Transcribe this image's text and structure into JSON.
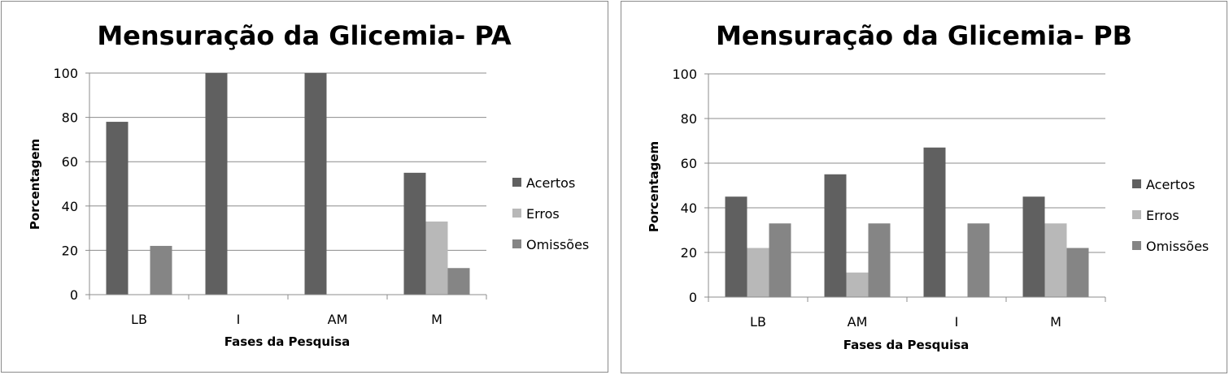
{
  "chart_data": [
    {
      "type": "bar",
      "title": "Mensuração da Glicemia- PA",
      "xlabel": "Fases da Pesquisa",
      "ylabel": "Porcentagem",
      "ylim": [
        0,
        100
      ],
      "yticks": [
        "0",
        "20",
        "40",
        "60",
        "80",
        "100"
      ],
      "categories": [
        "LB",
        "I",
        "AM",
        "M"
      ],
      "series": [
        {
          "name": "Acertos",
          "color": "#606060",
          "values": [
            78,
            100,
            100,
            55
          ]
        },
        {
          "name": "Erros",
          "color": "#b8b8b8",
          "values": [
            0,
            0,
            0,
            33
          ]
        },
        {
          "name": "Omissões",
          "color": "#858585",
          "values": [
            22,
            0,
            0,
            12
          ]
        }
      ],
      "grid": true,
      "legend": "right"
    },
    {
      "type": "bar",
      "title": "Mensuração da Glicemia- PB",
      "xlabel": "Fases da Pesquisa",
      "ylabel": "Porcentagem",
      "ylim": [
        0,
        100
      ],
      "yticks": [
        "0",
        "20",
        "40",
        "60",
        "80",
        "100"
      ],
      "categories": [
        "LB",
        "AM",
        "I",
        "M"
      ],
      "series": [
        {
          "name": "Acertos",
          "color": "#606060",
          "values": [
            45,
            55,
            67,
            45
          ]
        },
        {
          "name": "Erros",
          "color": "#b8b8b8",
          "values": [
            22,
            11,
            0,
            33
          ]
        },
        {
          "name": "Omissões",
          "color": "#858585",
          "values": [
            33,
            33,
            33,
            22
          ]
        }
      ],
      "grid": true,
      "legend": "right"
    }
  ]
}
